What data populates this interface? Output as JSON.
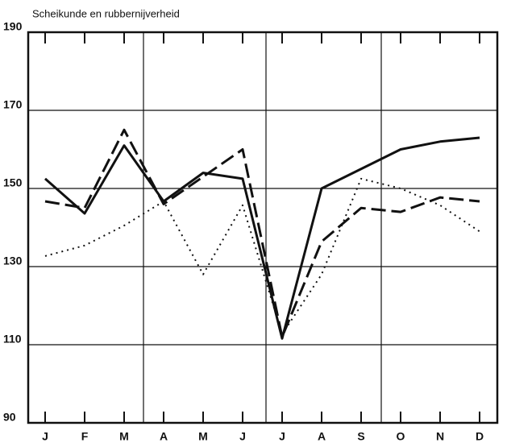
{
  "chart_data": {
    "type": "line",
    "title": "Scheikunde en rubbernijverheid",
    "categories": [
      "J",
      "F",
      "M",
      "A",
      "M",
      "J",
      "J",
      "A",
      "S",
      "O",
      "N",
      "D"
    ],
    "series": [
      {
        "color": "#111111",
        "style": "solid",
        "values": [
          152.5,
          143.6,
          161,
          146.7,
          154,
          152.5,
          111.6,
          150,
          155,
          160,
          162,
          163
        ]
      },
      {
        "color": "#111111",
        "style": "dashed",
        "values": [
          146.7,
          145,
          165,
          146,
          153,
          160,
          112,
          136.4,
          145,
          144,
          147.7,
          146.7
        ]
      },
      {
        "color": "#111111",
        "style": "dotted",
        "values": [
          132.7,
          135.4,
          140.5,
          146.7,
          128,
          145.7,
          112.7,
          128,
          152.5,
          150,
          145.7,
          139
        ]
      }
    ],
    "ylim": [
      90,
      190
    ],
    "yticks": [
      90,
      110,
      130,
      150,
      170,
      190
    ],
    "grid": true
  }
}
